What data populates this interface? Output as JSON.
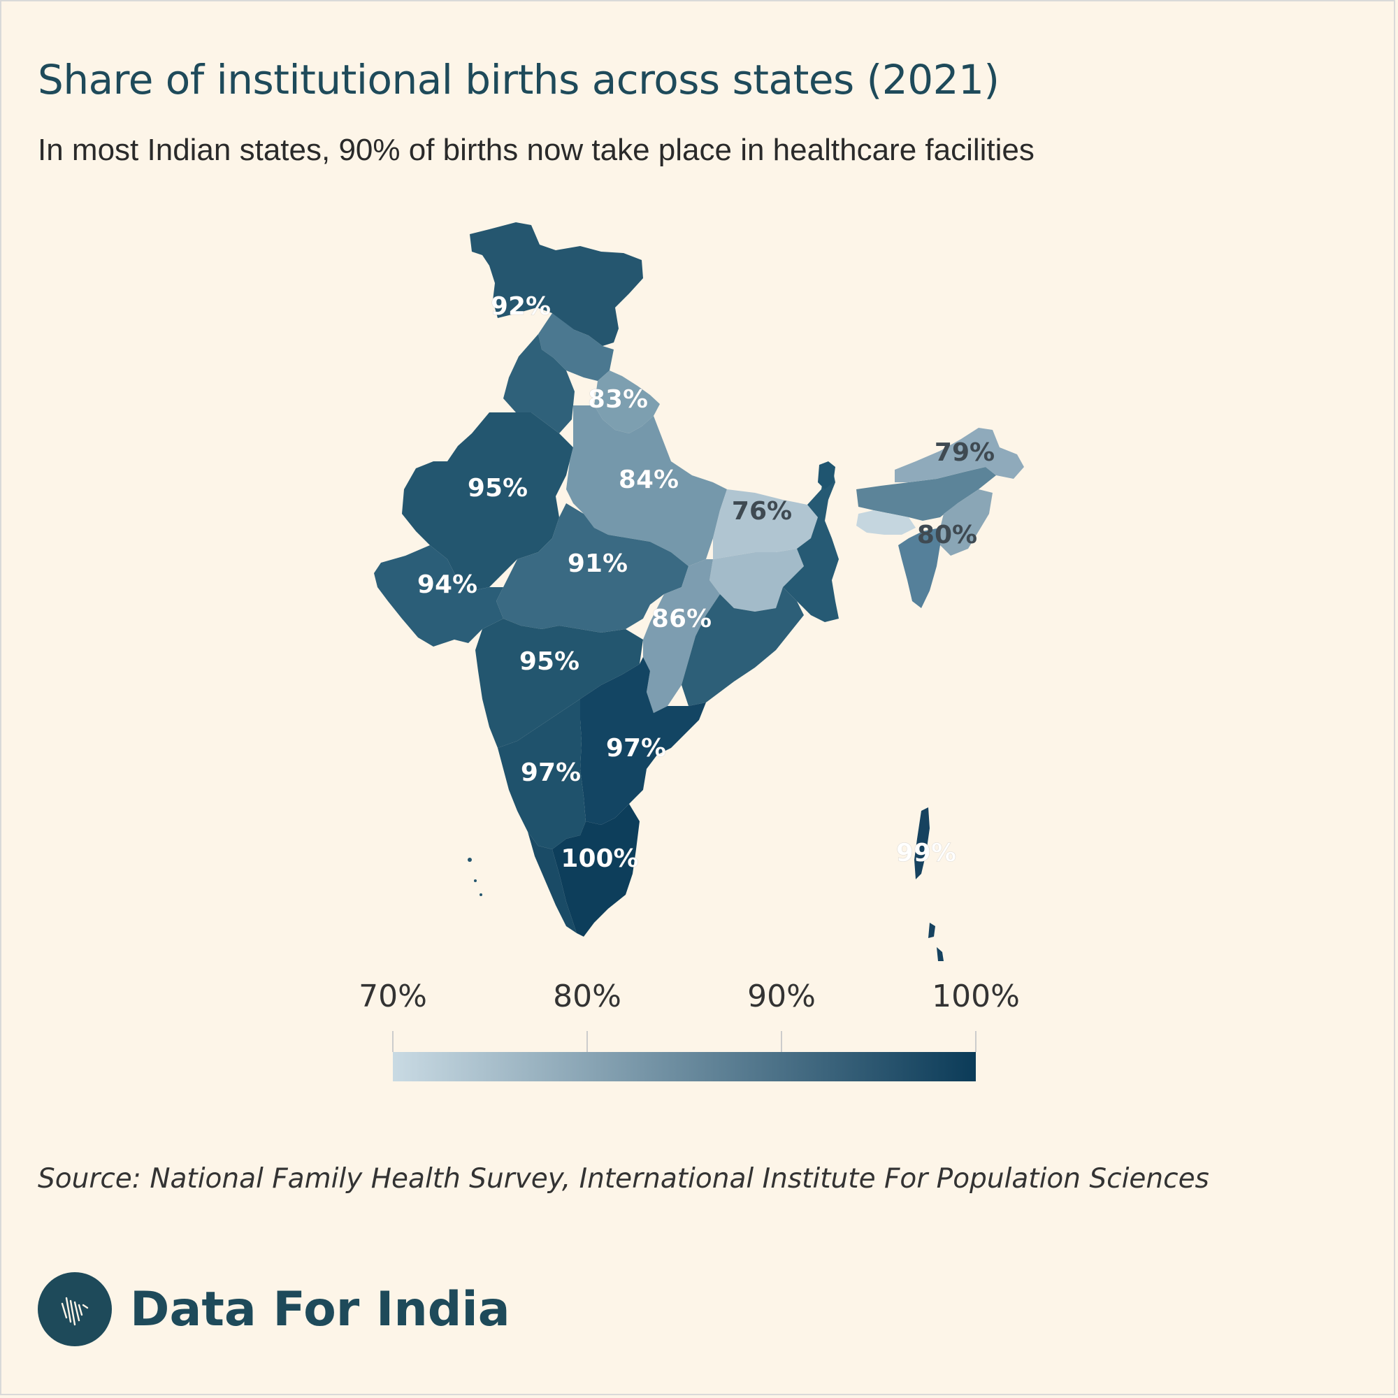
{
  "header": {
    "title": "Share of institutional births across states (2021)",
    "subtitle": "In most Indian states, 90% of births now take place in healthcare facilities"
  },
  "legend": {
    "ticks": [
      "70%",
      "80%",
      "90%",
      "100%"
    ],
    "min_value": 70,
    "max_value": 100,
    "color_low": "#c9dae3",
    "color_high": "#0b3b58"
  },
  "map_labels": [
    {
      "id": "jammu-kashmir",
      "text": "92%",
      "value": 92
    },
    {
      "id": "uttarakhand",
      "text": "83%",
      "value": 83
    },
    {
      "id": "uttar-pradesh",
      "text": "84%",
      "value": 84
    },
    {
      "id": "bihar",
      "text": "76%",
      "value": 76
    },
    {
      "id": "arunachal",
      "text": "79%",
      "value": 79
    },
    {
      "id": "nagaland",
      "text": "80%",
      "value": 80
    },
    {
      "id": "rajasthan",
      "text": "95%",
      "value": 95
    },
    {
      "id": "madhya-pradesh",
      "text": "91%",
      "value": 91
    },
    {
      "id": "gujarat",
      "text": "94%",
      "value": 94
    },
    {
      "id": "chhattisgarh",
      "text": "86%",
      "value": 86
    },
    {
      "id": "maharashtra",
      "text": "95%",
      "value": 95
    },
    {
      "id": "andhra-pradesh",
      "text": "97%",
      "value": 97
    },
    {
      "id": "karnataka",
      "text": "97%",
      "value": 97
    },
    {
      "id": "tamil-nadu",
      "text": "100%",
      "value": 100
    },
    {
      "id": "andaman",
      "text": "99%",
      "value": 99
    }
  ],
  "icons": {
    "brand": "india-map-logo-icon"
  },
  "footer": {
    "source": "Source: National Family Health Survey, International Institute For Population Sciences",
    "brand": "Data For India"
  }
}
